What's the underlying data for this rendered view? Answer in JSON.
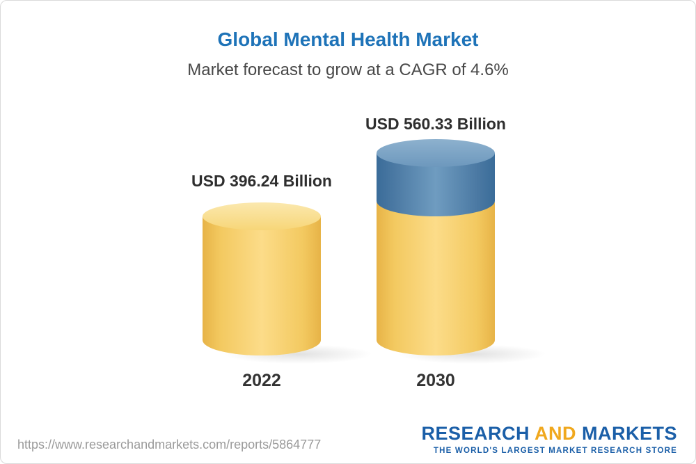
{
  "header": {
    "title": "Global Mental Health Market",
    "subtitle": "Market forecast to grow at a CAGR of 4.6%"
  },
  "chart_data": {
    "type": "bar",
    "chart_style": "3d-cylinder",
    "title": "Global Mental Health Market",
    "subtitle": "Market forecast to grow at a CAGR of 4.6%",
    "cagr_percent": 4.6,
    "unit": "USD Billion",
    "categories": [
      "2022",
      "2030"
    ],
    "values": [
      396.24,
      560.33
    ],
    "value_labels": [
      "USD 396.24 Billion",
      "USD 560.33 Billion"
    ],
    "legend_position": "none",
    "grid": false,
    "colors": {
      "base_segment": "#f6cf6e",
      "growth_segment": "#5d8fb8"
    }
  },
  "footer": {
    "url": "https://www.researchandmarkets.com/reports/5864777",
    "logo": {
      "research": "RESEARCH",
      "and": "AND",
      "markets": "MARKETS",
      "tagline": "THE WORLD'S LARGEST MARKET RESEARCH STORE"
    }
  }
}
